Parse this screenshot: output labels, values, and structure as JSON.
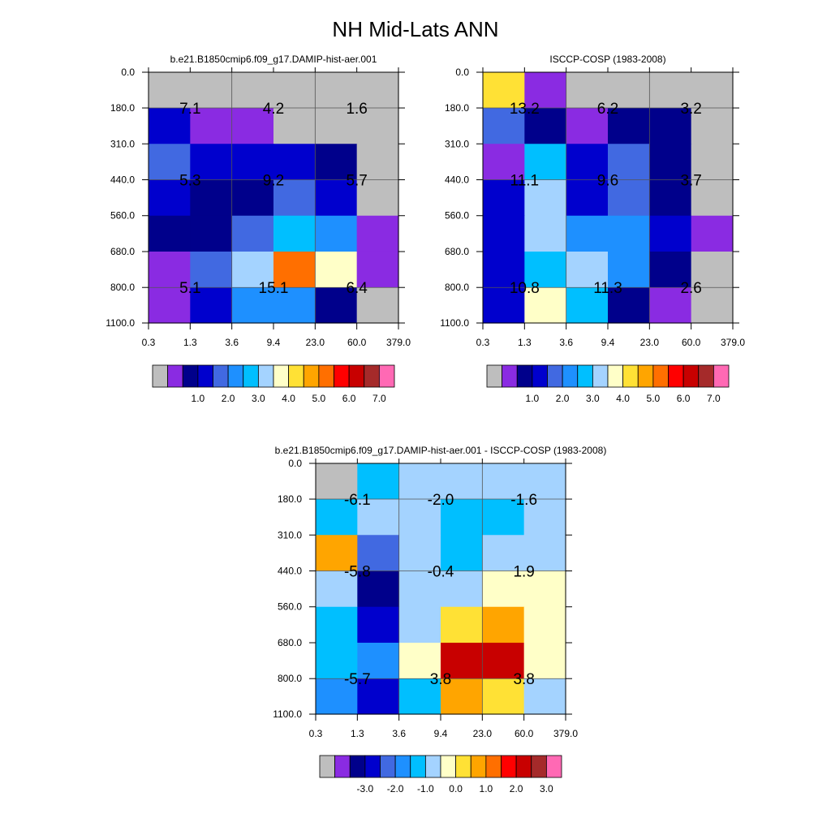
{
  "title": "NH Mid-Lats ANN",
  "palette": [
    "#bebebe",
    "#8a2be2",
    "#00008b",
    "#0000cd",
    "#4169e1",
    "#1e90ff",
    "#00bfff",
    "#a4d3ff",
    "#ffffc8",
    "#ffe135",
    "#ffa500",
    "#ff6f00",
    "#ff0000",
    "#c80000",
    "#a52a2a",
    "#ff69b4"
  ],
  "chart_data": [
    {
      "type": "heatmap",
      "title": "b.e21.B1850cmip6.f09_g17.DAMIP-hist-aer.001",
      "x_ticks": [
        "0.3",
        "1.3",
        "3.6",
        "9.4",
        "23.0",
        "60.0",
        "379.0"
      ],
      "y_ticks": [
        "0.0",
        "180.0",
        "310.0",
        "440.0",
        "560.0",
        "680.0",
        "800.0",
        "1100.0"
      ],
      "cell_color_index": [
        [
          0,
          0,
          0,
          0,
          0,
          0
        ],
        [
          3,
          1,
          1,
          0,
          0,
          0
        ],
        [
          4,
          3,
          3,
          3,
          2,
          0
        ],
        [
          3,
          2,
          2,
          4,
          3,
          0
        ],
        [
          2,
          2,
          4,
          6,
          5,
          1
        ],
        [
          1,
          4,
          7,
          11,
          8,
          1
        ],
        [
          1,
          3,
          5,
          5,
          2,
          0
        ]
      ],
      "box_labels": [
        {
          "row": 0,
          "col": 0,
          "value": "7.1"
        },
        {
          "row": 0,
          "col": 1,
          "value": "4.2"
        },
        {
          "row": 0,
          "col": 2,
          "value": "1.6"
        },
        {
          "row": 1,
          "col": 0,
          "value": "5.3"
        },
        {
          "row": 1,
          "col": 1,
          "value": "9.2"
        },
        {
          "row": 1,
          "col": 2,
          "value": "5.7"
        },
        {
          "row": 2,
          "col": 0,
          "value": "5.1"
        },
        {
          "row": 2,
          "col": 1,
          "value": "15.1"
        },
        {
          "row": 2,
          "col": 2,
          "value": "6.4"
        }
      ],
      "colorbar_labels": [
        "1.0",
        "2.0",
        "3.0",
        "4.0",
        "5.0",
        "6.0",
        "7.0"
      ]
    },
    {
      "type": "heatmap",
      "title": "ISCCP-COSP (1983-2008)",
      "x_ticks": [
        "0.3",
        "1.3",
        "3.6",
        "9.4",
        "23.0",
        "60.0",
        "379.0"
      ],
      "y_ticks": [
        "0.0",
        "180.0",
        "310.0",
        "440.0",
        "560.0",
        "680.0",
        "800.0",
        "1100.0"
      ],
      "cell_color_index": [
        [
          9,
          1,
          0,
          0,
          0,
          0
        ],
        [
          4,
          2,
          1,
          2,
          2,
          0
        ],
        [
          1,
          6,
          3,
          4,
          2,
          0
        ],
        [
          3,
          7,
          3,
          4,
          2,
          0
        ],
        [
          3,
          7,
          5,
          5,
          3,
          1
        ],
        [
          3,
          6,
          7,
          5,
          2,
          0
        ],
        [
          3,
          8,
          6,
          2,
          1,
          0
        ]
      ],
      "box_labels": [
        {
          "row": 0,
          "col": 0,
          "value": "13.2"
        },
        {
          "row": 0,
          "col": 1,
          "value": "6.2"
        },
        {
          "row": 0,
          "col": 2,
          "value": "3.2"
        },
        {
          "row": 1,
          "col": 0,
          "value": "11.1"
        },
        {
          "row": 1,
          "col": 1,
          "value": "9.6"
        },
        {
          "row": 1,
          "col": 2,
          "value": "3.7"
        },
        {
          "row": 2,
          "col": 0,
          "value": "10.8"
        },
        {
          "row": 2,
          "col": 1,
          "value": "11.3"
        },
        {
          "row": 2,
          "col": 2,
          "value": "2.6"
        }
      ],
      "colorbar_labels": [
        "1.0",
        "2.0",
        "3.0",
        "4.0",
        "5.0",
        "6.0",
        "7.0"
      ]
    },
    {
      "type": "heatmap",
      "title": "b.e21.B1850cmip6.f09_g17.DAMIP-hist-aer.001 - ISCCP-COSP (1983-2008)",
      "x_ticks": [
        "0.3",
        "1.3",
        "3.6",
        "9.4",
        "23.0",
        "60.0",
        "379.0"
      ],
      "y_ticks": [
        "0.0",
        "180.0",
        "310.0",
        "440.0",
        "560.0",
        "680.0",
        "800.0",
        "1100.0"
      ],
      "cell_color_index": [
        [
          0,
          6,
          7,
          7,
          7,
          7
        ],
        [
          6,
          7,
          7,
          6,
          6,
          7
        ],
        [
          10,
          4,
          7,
          6,
          7,
          7
        ],
        [
          7,
          2,
          7,
          7,
          8,
          8
        ],
        [
          6,
          3,
          7,
          9,
          10,
          8
        ],
        [
          6,
          5,
          8,
          13,
          13,
          8
        ],
        [
          5,
          3,
          6,
          10,
          9,
          7
        ]
      ],
      "box_labels": [
        {
          "row": 0,
          "col": 0,
          "value": "-6.1"
        },
        {
          "row": 0,
          "col": 1,
          "value": "-2.0"
        },
        {
          "row": 0,
          "col": 2,
          "value": "-1.6"
        },
        {
          "row": 1,
          "col": 0,
          "value": "-5.8"
        },
        {
          "row": 1,
          "col": 1,
          "value": "-0.4"
        },
        {
          "row": 1,
          "col": 2,
          "value": "1.9"
        },
        {
          "row": 2,
          "col": 0,
          "value": "-5.7"
        },
        {
          "row": 2,
          "col": 1,
          "value": "3.8"
        },
        {
          "row": 2,
          "col": 2,
          "value": "3.8"
        }
      ],
      "colorbar_labels": [
        "-3.0",
        "-2.0",
        "-1.0",
        "0.0",
        "1.0",
        "2.0",
        "3.0"
      ]
    }
  ]
}
